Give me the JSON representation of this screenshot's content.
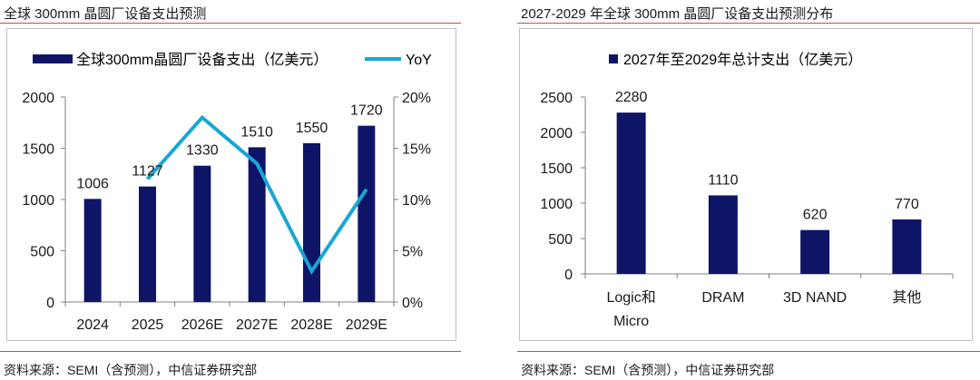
{
  "colors": {
    "bar": "#0f1566",
    "line": "#1aa6d4",
    "rule": "#c0504d",
    "frame": "#bfbfbf",
    "axis": "#7f7f7f"
  },
  "left_panel": {
    "title": "全球 300mm 晶圆厂设备支出预测",
    "source": "资料来源：SEMI（含预测），中信证券研究部"
  },
  "right_panel": {
    "title": "2027-2029 年全球 300mm 晶圆厂设备支出预测分布",
    "source": "资料来源：SEMI（含预测），中信证券研究部"
  },
  "chart_data": [
    {
      "type": "bar",
      "title": "全球 300mm 晶圆厂设备支出预测",
      "categories": [
        "2024",
        "2025",
        "2026E",
        "2027E",
        "2028E",
        "2029E"
      ],
      "series": [
        {
          "name": "全球300mm晶圆厂设备支出（亿美元）",
          "type": "bar",
          "axis": "left",
          "values": [
            1006,
            1127,
            1330,
            1510,
            1550,
            1720
          ]
        },
        {
          "name": "YoY",
          "type": "line",
          "axis": "right",
          "values": [
            null,
            12.0,
            18.0,
            13.5,
            3.0,
            11.0
          ]
        }
      ],
      "ylim": [
        0,
        2000
      ],
      "yticks": [
        "0",
        "500",
        "1000",
        "1500",
        "2000"
      ],
      "y2lim": [
        0,
        20
      ],
      "y2ticks": [
        "0%",
        "5%",
        "10%",
        "15%",
        "20%"
      ],
      "data_labels": [
        "1006",
        "1127",
        "1330",
        "1510",
        "1550",
        "1720"
      ],
      "legend_position": "top"
    },
    {
      "type": "bar",
      "title": "2027-2029 年全球 300mm 晶圆厂设备支出预测分布",
      "categories": [
        "Logic和Micro",
        "DRAM",
        "3D NAND",
        "其他"
      ],
      "category_lines": [
        [
          "Logic和",
          "Micro"
        ],
        [
          "DRAM"
        ],
        [
          "3D NAND"
        ],
        [
          "其他"
        ]
      ],
      "series": [
        {
          "name": "2027年至2029年总计支出（亿美元）",
          "values": [
            2280,
            1110,
            620,
            770
          ]
        }
      ],
      "ylim": [
        0,
        2500
      ],
      "yticks": [
        "0",
        "500",
        "1000",
        "1500",
        "2000",
        "2500"
      ],
      "data_labels": [
        "2280",
        "1110",
        "620",
        "770"
      ],
      "legend_position": "top"
    }
  ]
}
